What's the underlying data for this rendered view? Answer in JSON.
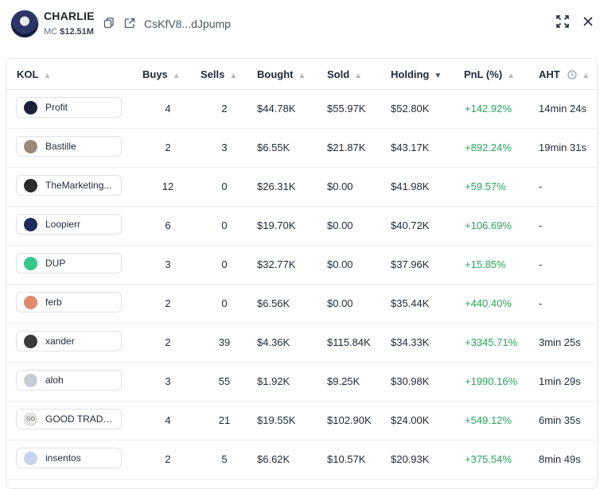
{
  "token": {
    "name": "CHARLIE",
    "mc_label": "MC",
    "mc_value": "$12.51M",
    "address": "CsKfV8...dJpump"
  },
  "table": {
    "headers": {
      "kol": "KOL",
      "buys": "Buys",
      "sells": "Sells",
      "bought": "Bought",
      "sold": "Sold",
      "holding": "Holding",
      "pnl": "PnL (%)",
      "aht": "AHT"
    },
    "rows": [
      {
        "name": "Profit",
        "buys": "4",
        "sells": "2",
        "bought": "$44.78K",
        "sold": "$55.97K",
        "holding": "$52.80K",
        "pnl": "+142.92%",
        "aht": "14min 24s",
        "avatar_color": "#1c1f3a"
      },
      {
        "name": "Bastille",
        "buys": "2",
        "sells": "3",
        "bought": "$6.55K",
        "sold": "$21.87K",
        "holding": "$43.17K",
        "pnl": "+892.24%",
        "aht": "19min 31s",
        "avatar_color": "#9a8a7a"
      },
      {
        "name": "TheMarketing...",
        "buys": "12",
        "sells": "0",
        "bought": "$26.31K",
        "sold": "$0.00",
        "holding": "$41.98K",
        "pnl": "+59.57%",
        "aht": "-",
        "avatar_color": "#2a2a2a"
      },
      {
        "name": "Loopierr",
        "buys": "6",
        "sells": "0",
        "bought": "$19.70K",
        "sold": "$0.00",
        "holding": "$40.72K",
        "pnl": "+106.69%",
        "aht": "-",
        "avatar_color": "#1e2a5a"
      },
      {
        "name": "DUP",
        "buys": "3",
        "sells": "0",
        "bought": "$32.77K",
        "sold": "$0.00",
        "holding": "$37.96K",
        "pnl": "+15.85%",
        "aht": "-",
        "avatar_color": "#34c98a"
      },
      {
        "name": "ferb",
        "buys": "2",
        "sells": "0",
        "bought": "$6.56K",
        "sold": "$0.00",
        "holding": "$35.44K",
        "pnl": "+440.40%",
        "aht": "-",
        "avatar_color": "#e08a6a"
      },
      {
        "name": "xander",
        "buys": "2",
        "sells": "39",
        "bought": "$4.36K",
        "sold": "$115.84K",
        "holding": "$34.33K",
        "pnl": "+3345.71%",
        "aht": "3min 25s",
        "avatar_color": "#3a3a3a"
      },
      {
        "name": "aloh",
        "buys": "3",
        "sells": "55",
        "bought": "$1.92K",
        "sold": "$9.25K",
        "holding": "$30.98K",
        "pnl": "+1990.16%",
        "aht": "1min 29s",
        "avatar_color": "#c9ccd4"
      },
      {
        "name": "GOOD TRADE...",
        "buys": "4",
        "sells": "21",
        "bought": "$19.55K",
        "sold": "$102.90K",
        "holding": "$24.00K",
        "pnl": "+549.12%",
        "aht": "6min 35s",
        "avatar_color": "#e6e6e6",
        "avatar_text": "GO"
      },
      {
        "name": "insentos",
        "buys": "2",
        "sells": "5",
        "bought": "$6.62K",
        "sold": "$10.57K",
        "holding": "$20.93K",
        "pnl": "+375.54%",
        "aht": "8min 49s",
        "avatar_color": "#c8d4f0"
      }
    ]
  },
  "icons": {
    "copy": "copy-icon",
    "external": "external-link-icon",
    "expand": "expand-icon",
    "close": "close-icon",
    "info": "info-circle-icon"
  }
}
